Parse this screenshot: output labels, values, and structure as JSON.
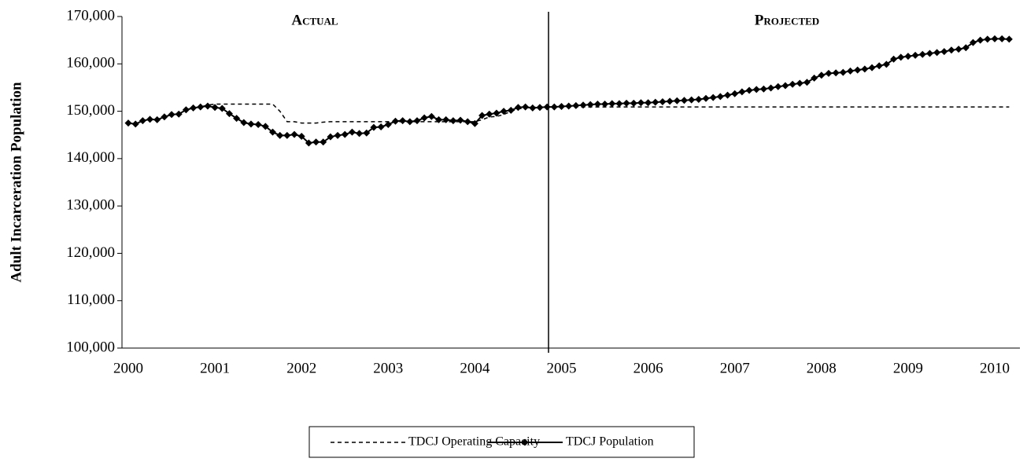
{
  "chart_data": {
    "type": "line",
    "y_label": "Adult Incarceration Population",
    "annotations": [
      "Actual",
      "Projected"
    ],
    "categories": [
      "2000",
      null,
      null,
      null,
      null,
      null,
      null,
      null,
      null,
      null,
      null,
      null,
      "2001",
      null,
      null,
      null,
      null,
      null,
      null,
      null,
      null,
      null,
      null,
      null,
      "2002",
      null,
      null,
      null,
      null,
      null,
      null,
      null,
      null,
      null,
      null,
      null,
      "2003",
      null,
      null,
      null,
      null,
      null,
      null,
      null,
      null,
      null,
      null,
      null,
      "2004",
      null,
      null,
      null,
      null,
      null,
      null,
      null,
      null,
      null,
      null,
      null,
      "2005",
      null,
      null,
      null,
      null,
      null,
      null,
      null,
      null,
      null,
      null,
      null,
      "2006",
      null,
      null,
      null,
      null,
      null,
      null,
      null,
      null,
      null,
      null,
      null,
      "2007",
      null,
      null,
      null,
      null,
      null,
      null,
      null,
      null,
      null,
      null,
      null,
      "2008",
      null,
      null,
      null,
      null,
      null,
      null,
      null,
      null,
      null,
      null,
      null,
      "2009",
      null,
      null,
      null,
      null,
      null,
      null,
      null,
      null,
      null,
      null,
      null,
      "2010",
      null,
      null
    ],
    "series": [
      {
        "name": "TDCJ Operating Capacity",
        "color": "#000000",
        "dash": true,
        "marker": false,
        "values": [
          147500,
          147300,
          148000,
          148300,
          148200,
          148800,
          149300,
          149400,
          150300,
          150700,
          150900,
          151300,
          151500,
          151500,
          151500,
          151500,
          151500,
          151500,
          151500,
          151500,
          151500,
          150000,
          147800,
          147800,
          147500,
          147500,
          147500,
          147700,
          147800,
          147800,
          147800,
          147800,
          147800,
          147800,
          147800,
          147800,
          147800,
          147800,
          147800,
          147800,
          147800,
          147800,
          147800,
          147800,
          147800,
          147800,
          147800,
          147800,
          147800,
          148200,
          148800,
          148900,
          149300,
          150000,
          150500,
          150700,
          150800,
          150900,
          150900,
          150900,
          150900,
          150900,
          150900,
          150900,
          150900,
          150900,
          150900,
          150900,
          150900,
          150900,
          150900,
          150900,
          150900,
          150900,
          150900,
          150900,
          150900,
          150900,
          150900,
          150900,
          150900,
          150900,
          150900,
          150900,
          150900,
          150900,
          150900,
          150900,
          150900,
          150900,
          150900,
          150900,
          150900,
          150900,
          150900,
          150900,
          150900,
          150900,
          150900,
          150900,
          150900,
          150900,
          150900,
          150900,
          150900,
          150900,
          150900,
          150900,
          150900,
          150900,
          150900,
          150900,
          150900,
          150900,
          150900,
          150900,
          150900,
          150900,
          150900,
          150900,
          150900,
          150900,
          150900
        ]
      },
      {
        "name": "TDCJ Population",
        "color": "#000000",
        "dash": false,
        "marker": true,
        "values": [
          147500,
          147300,
          148000,
          148300,
          148200,
          148800,
          149300,
          149400,
          150300,
          150700,
          150900,
          151100,
          150800,
          150600,
          149500,
          148500,
          147600,
          147300,
          147200,
          146800,
          145600,
          144900,
          144900,
          145100,
          144700,
          143300,
          143500,
          143500,
          144600,
          144900,
          145100,
          145600,
          145300,
          145400,
          146600,
          146700,
          147200,
          147900,
          148000,
          147800,
          148000,
          148600,
          148900,
          148200,
          148200,
          148000,
          148100,
          147800,
          147400,
          149100,
          149400,
          149600,
          150000,
          150200,
          150800,
          150900,
          150700,
          150800,
          150900,
          150900,
          151000,
          151100,
          151200,
          151300,
          151400,
          151500,
          151500,
          151600,
          151600,
          151700,
          151700,
          151800,
          151800,
          151900,
          152000,
          152100,
          152200,
          152300,
          152400,
          152500,
          152700,
          152900,
          153100,
          153400,
          153700,
          154100,
          154400,
          154600,
          154700,
          154900,
          155200,
          155400,
          155700,
          155900,
          156100,
          157000,
          157600,
          158000,
          158100,
          158200,
          158500,
          158700,
          158900,
          159200,
          159600,
          159900,
          161000,
          161400,
          161600,
          161800,
          162000,
          162200,
          162400,
          162600,
          162900,
          163100,
          163400,
          164500,
          165000,
          165200,
          165300,
          165300,
          165200
        ]
      }
    ],
    "ylim": [
      100000,
      170000
    ],
    "yticks": [
      {
        "value": 100000,
        "label": "100,000"
      },
      {
        "value": 110000,
        "label": "110,000"
      },
      {
        "value": 120000,
        "label": "120,000"
      },
      {
        "value": 130000,
        "label": "130,000"
      },
      {
        "value": 140000,
        "label": "140,000"
      },
      {
        "value": 150000,
        "label": "150,000"
      },
      {
        "value": 160000,
        "label": "160,000"
      },
      {
        "value": 170000,
        "label": "170,000"
      }
    ],
    "grid": false,
    "legend": "bottom"
  }
}
